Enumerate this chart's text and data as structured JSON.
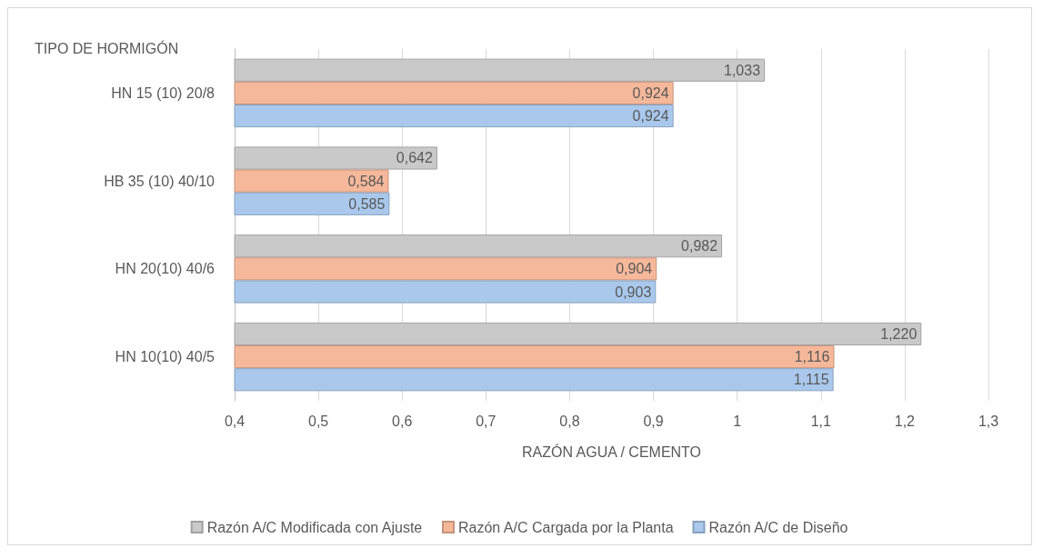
{
  "chart_data": {
    "type": "bar",
    "orientation": "horizontal",
    "ylabel": "TIPO DE HORMIGÓN",
    "xlabel": "RAZÓN AGUA / CEMENTO",
    "categories": [
      "HN 15 (10) 20/8",
      "HB 35 (10) 40/10",
      "HN 20(10) 40/6",
      "HN 10(10) 40/5"
    ],
    "series": [
      {
        "name": "Razón A/C Modificada con Ajuste",
        "color": "#c9c9c9",
        "values": [
          1.033,
          0.642,
          0.982,
          1.22
        ],
        "value_labels": [
          "1,033",
          "0,642",
          "0,982",
          "1,220"
        ]
      },
      {
        "name": "Razón A/C Cargada por la Planta",
        "color": "#f6b89a",
        "values": [
          0.924,
          0.584,
          0.904,
          1.116
        ],
        "value_labels": [
          "0,924",
          "0,584",
          "0,904",
          "1,116"
        ]
      },
      {
        "name": "Razón A/C de Diseño",
        "color": "#a9c8ec",
        "values": [
          0.924,
          0.585,
          0.903,
          1.115
        ],
        "value_labels": [
          "0,924",
          "0,585",
          "0,903",
          "1,115"
        ]
      }
    ],
    "xlim": [
      0.4,
      1.3
    ],
    "xticks": [
      {
        "value": 0.4,
        "label": "0,4"
      },
      {
        "value": 0.5,
        "label": "0,5"
      },
      {
        "value": 0.6,
        "label": "0,6"
      },
      {
        "value": 0.7,
        "label": "0,7"
      },
      {
        "value": 0.8,
        "label": "0,8"
      },
      {
        "value": 0.9,
        "label": "0,9"
      },
      1,
      {
        "value": 1.1,
        "label": "1,1"
      },
      {
        "value": 1.2,
        "label": "1,2"
      },
      {
        "value": 1.3,
        "label": "1,3"
      }
    ],
    "grid": "x",
    "legend": "bottom"
  }
}
